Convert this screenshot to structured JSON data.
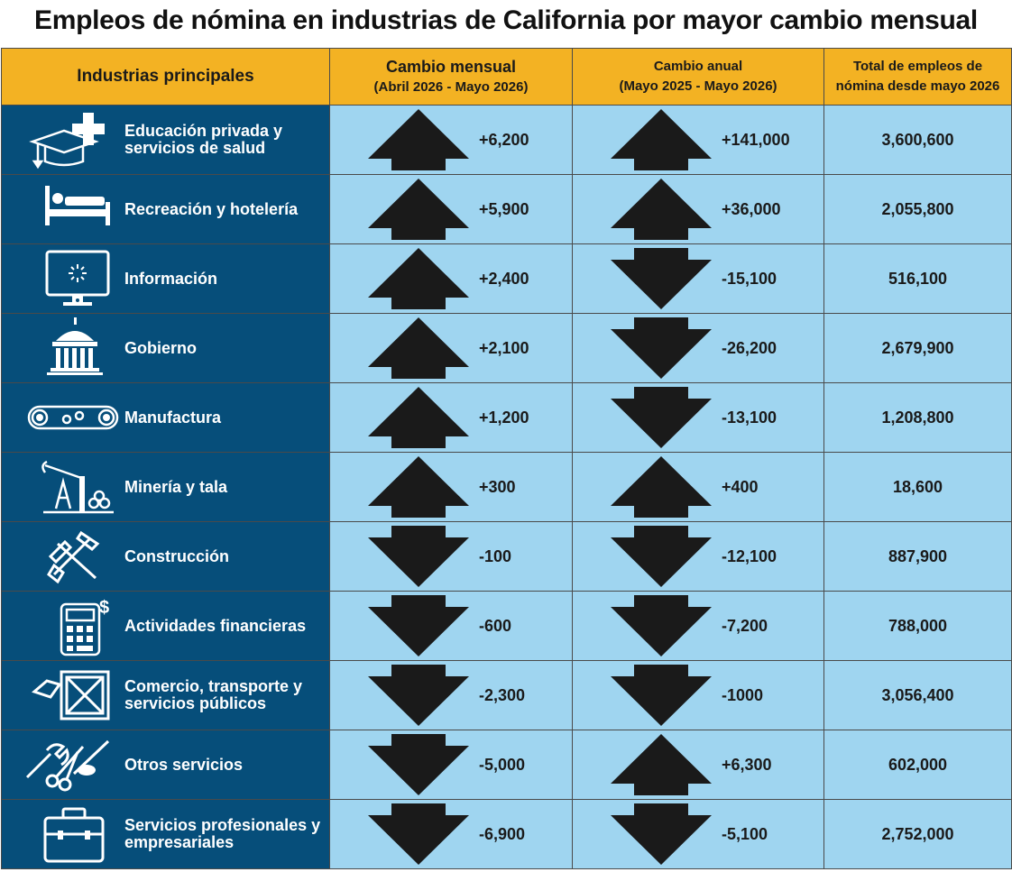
{
  "title": "Empleos de nómina en industrias de California por mayor cambio mensual",
  "headers": {
    "industry": "Industrias principales",
    "monthly_line1": "Cambio mensual",
    "monthly_line2": "(Abril 2026 - Mayo 2026)",
    "annual_line1": "Cambio anual",
    "annual_line2": "(Mayo 2025 - Mayo 2026)",
    "total_line1": "Total de empleos de",
    "total_line2": "nómina desde mayo 2026"
  },
  "colors": {
    "header": "#f3b223",
    "industry_bg": "#064e7a",
    "value_bg": "#9fd5f0",
    "arrow": "#1a1a1a"
  },
  "rows": [
    {
      "icon": "graduation-cap-medical-icon",
      "label_line1": "Educación privada y",
      "label_line2": "servicios de salud",
      "monthly": "+6,200",
      "monthly_dir": "up",
      "annual": "+141,000",
      "annual_dir": "up",
      "total": "3,600,600"
    },
    {
      "icon": "bed-icon",
      "label_line1": "Recreación y hotelería",
      "label_line2": "",
      "monthly": "+5,900",
      "monthly_dir": "up",
      "annual": "+36,000",
      "annual_dir": "up",
      "total": "2,055,800"
    },
    {
      "icon": "computer-monitor-icon",
      "label_line1": "Información",
      "label_line2": "",
      "monthly": "+2,400",
      "monthly_dir": "up",
      "annual": "-15,100",
      "annual_dir": "down",
      "total": "516,100"
    },
    {
      "icon": "capitol-building-icon",
      "label_line1": "Gobierno",
      "label_line2": "",
      "monthly": "+2,100",
      "monthly_dir": "up",
      "annual": "-26,200",
      "annual_dir": "down",
      "total": "2,679,900"
    },
    {
      "icon": "conveyor-gears-icon",
      "label_line1": "Manufactura",
      "label_line2": "",
      "monthly": "+1,200",
      "monthly_dir": "up",
      "annual": "-13,100",
      "annual_dir": "down",
      "total": "1,208,800"
    },
    {
      "icon": "oil-pump-logs-icon",
      "label_line1": "Minería y tala",
      "label_line2": "",
      "monthly": "+300",
      "monthly_dir": "up",
      "annual": "+400",
      "annual_dir": "up",
      "total": "18,600"
    },
    {
      "icon": "hammer-saw-icon",
      "label_line1": "Construcción",
      "label_line2": "",
      "monthly": "-100",
      "monthly_dir": "down",
      "annual": "-12,100",
      "annual_dir": "down",
      "total": "887,900"
    },
    {
      "icon": "calculator-dollar-icon",
      "label_line1": "Actividades financieras",
      "label_line2": "",
      "monthly": "-600",
      "monthly_dir": "down",
      "annual": "-7,200",
      "annual_dir": "down",
      "total": "788,000"
    },
    {
      "icon": "crate-tag-icon",
      "label_line1": "Comercio, transporte y",
      "label_line2": "servicios públicos",
      "monthly": "-2,300",
      "monthly_dir": "down",
      "annual": "-1000",
      "annual_dir": "down",
      "total": "3,056,400"
    },
    {
      "icon": "wrench-scissors-icon",
      "label_line1": "Otros servicios",
      "label_line2": "",
      "monthly": "-5,000",
      "monthly_dir": "down",
      "annual": "+6,300",
      "annual_dir": "up",
      "total": "602,000"
    },
    {
      "icon": "toolbox-icon",
      "label_line1": "Servicios profesionales y",
      "label_line2": "empresariales",
      "monthly": "-6,900",
      "monthly_dir": "down",
      "annual": "-5,100",
      "annual_dir": "down",
      "total": "2,752,000"
    }
  ]
}
